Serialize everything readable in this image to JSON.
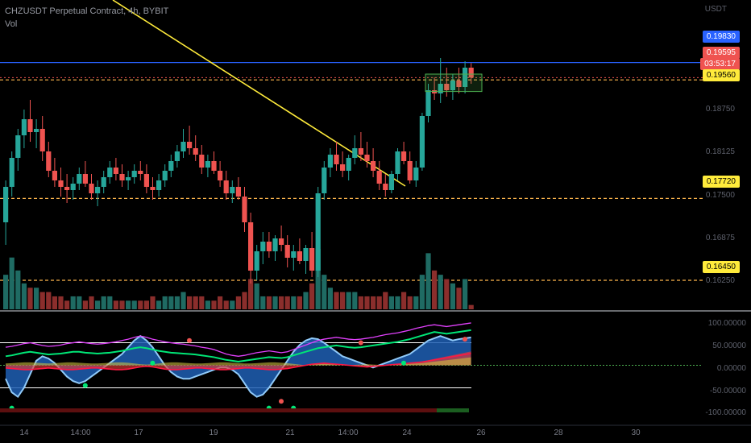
{
  "header": {
    "title": "CHZUSDT Perpetual Contract, 4h, BYBIT",
    "volume_label": "Vol"
  },
  "price_axis": {
    "currency_label": "USDT",
    "ticks": [
      "0.18750",
      "0.18125",
      "0.17500",
      "0.16875",
      "0.16250"
    ]
  },
  "price_tags": {
    "upper_line": "0.19830",
    "last_price": "0.19595",
    "countdown": "03:53:17",
    "box_level": "0.19560",
    "mid_level": "0.17720",
    "low_level": "0.16450"
  },
  "oscillator_axis": {
    "ticks": [
      "100.00000",
      "50.00000",
      "0.00000",
      "-50.00000",
      "-100.00000"
    ]
  },
  "time_axis": {
    "ticks": [
      "14",
      "14:00",
      "17",
      "19",
      "21",
      "14:00",
      "24",
      "26",
      "28",
      "30"
    ]
  },
  "colors": {
    "background": "#000000",
    "bull": "#26a69a",
    "bear": "#ef5350",
    "blue_line": "#2962ff",
    "trendline": "#ffeb3b",
    "dashed_level": "#ffb74d",
    "tag_yellow": "#ffeb3b",
    "tag_blue": "#2962ff",
    "tag_red": "#ef5350"
  },
  "chart_data": {
    "type": "candlestick",
    "symbol": "CHZUSDT",
    "interval": "4h",
    "ylim": [
      0.16,
      0.203
    ],
    "ohlc": [
      [
        0.1735,
        0.18,
        0.17,
        0.179
      ],
      [
        0.179,
        0.1845,
        0.1775,
        0.1835
      ],
      [
        0.1835,
        0.188,
        0.1815,
        0.187
      ],
      [
        0.187,
        0.191,
        0.185,
        0.1895
      ],
      [
        0.1895,
        0.1925,
        0.186,
        0.1875
      ],
      [
        0.1875,
        0.1895,
        0.185,
        0.188
      ],
      [
        0.188,
        0.19,
        0.183,
        0.1845
      ],
      [
        0.1845,
        0.186,
        0.1805,
        0.1815
      ],
      [
        0.1815,
        0.1835,
        0.179,
        0.18
      ],
      [
        0.18,
        0.182,
        0.1775,
        0.179
      ],
      [
        0.179,
        0.181,
        0.1765,
        0.1785
      ],
      [
        0.1785,
        0.1805,
        0.177,
        0.1795
      ],
      [
        0.1795,
        0.182,
        0.1785,
        0.181
      ],
      [
        0.181,
        0.183,
        0.179,
        0.1795
      ],
      [
        0.1795,
        0.181,
        0.177,
        0.178
      ],
      [
        0.178,
        0.18,
        0.176,
        0.179
      ],
      [
        0.179,
        0.1815,
        0.178,
        0.1805
      ],
      [
        0.1805,
        0.183,
        0.1795,
        0.182
      ],
      [
        0.182,
        0.1835,
        0.18,
        0.181
      ],
      [
        0.181,
        0.1825,
        0.179,
        0.18
      ],
      [
        0.18,
        0.1815,
        0.1785,
        0.1805
      ],
      [
        0.1805,
        0.1825,
        0.1795,
        0.1815
      ],
      [
        0.1815,
        0.183,
        0.18,
        0.181
      ],
      [
        0.181,
        0.1825,
        0.178,
        0.179
      ],
      [
        0.179,
        0.1805,
        0.177,
        0.1785
      ],
      [
        0.1785,
        0.181,
        0.1775,
        0.18
      ],
      [
        0.18,
        0.1825,
        0.179,
        0.1815
      ],
      [
        0.1815,
        0.184,
        0.1805,
        0.183
      ],
      [
        0.183,
        0.1855,
        0.182,
        0.1845
      ],
      [
        0.1845,
        0.188,
        0.1835,
        0.186
      ],
      [
        0.186,
        0.1885,
        0.184,
        0.185
      ],
      [
        0.185,
        0.187,
        0.183,
        0.184
      ],
      [
        0.184,
        0.1855,
        0.181,
        0.182
      ],
      [
        0.182,
        0.184,
        0.1805,
        0.183
      ],
      [
        0.183,
        0.1845,
        0.181,
        0.1815
      ],
      [
        0.1815,
        0.183,
        0.179,
        0.18
      ],
      [
        0.18,
        0.1815,
        0.177,
        0.178
      ],
      [
        0.178,
        0.18,
        0.1765,
        0.179
      ],
      [
        0.179,
        0.1805,
        0.177,
        0.1775
      ],
      [
        0.1775,
        0.179,
        0.172,
        0.1735
      ],
      [
        0.1735,
        0.175,
        0.164,
        0.166
      ],
      [
        0.166,
        0.17,
        0.1645,
        0.169
      ],
      [
        0.169,
        0.172,
        0.167,
        0.1705
      ],
      [
        0.1705,
        0.172,
        0.168,
        0.169
      ],
      [
        0.169,
        0.1715,
        0.1675,
        0.171
      ],
      [
        0.171,
        0.173,
        0.169,
        0.17
      ],
      [
        0.17,
        0.1715,
        0.1665,
        0.168
      ],
      [
        0.168,
        0.17,
        0.166,
        0.169
      ],
      [
        0.169,
        0.171,
        0.167,
        0.1675
      ],
      [
        0.1675,
        0.17,
        0.1655,
        0.1695
      ],
      [
        0.1695,
        0.172,
        0.165,
        0.166
      ],
      [
        0.166,
        0.179,
        0.165,
        0.178
      ],
      [
        0.178,
        0.183,
        0.177,
        0.182
      ],
      [
        0.182,
        0.185,
        0.1805,
        0.184
      ],
      [
        0.184,
        0.186,
        0.1815,
        0.1825
      ],
      [
        0.1825,
        0.1845,
        0.1805,
        0.1815
      ],
      [
        0.1815,
        0.184,
        0.18,
        0.1835
      ],
      [
        0.1835,
        0.187,
        0.1825,
        0.185
      ],
      [
        0.185,
        0.1875,
        0.183,
        0.184
      ],
      [
        0.184,
        0.186,
        0.182,
        0.183
      ],
      [
        0.183,
        0.185,
        0.1805,
        0.1815
      ],
      [
        0.1815,
        0.183,
        0.1785,
        0.1795
      ],
      [
        0.1795,
        0.181,
        0.1775,
        0.1785
      ],
      [
        0.1785,
        0.1815,
        0.178,
        0.181
      ],
      [
        0.181,
        0.185,
        0.18,
        0.1845
      ],
      [
        0.1845,
        0.186,
        0.1825,
        0.183
      ],
      [
        0.183,
        0.1845,
        0.1795,
        0.18
      ],
      [
        0.18,
        0.183,
        0.179,
        0.182
      ],
      [
        0.182,
        0.1905,
        0.1815,
        0.19
      ],
      [
        0.19,
        0.195,
        0.189,
        0.194
      ],
      [
        0.194,
        0.196,
        0.1925,
        0.1935
      ],
      [
        0.1935,
        0.199,
        0.192,
        0.195
      ],
      [
        0.195,
        0.1975,
        0.193,
        0.194
      ],
      [
        0.194,
        0.1965,
        0.1925,
        0.1955
      ],
      [
        0.1955,
        0.1975,
        0.1935,
        0.1945
      ],
      [
        0.1945,
        0.1985,
        0.1935,
        0.1975
      ],
      [
        0.1975,
        0.1982,
        0.195,
        0.19595
      ]
    ],
    "volume": [
      8,
      12,
      9,
      6,
      5,
      5,
      4,
      4,
      3,
      3,
      2,
      3,
      3,
      2,
      3,
      2,
      3,
      3,
      2,
      2,
      2,
      2,
      2,
      2,
      3,
      2,
      3,
      3,
      3,
      4,
      3,
      3,
      3,
      2,
      2,
      3,
      2,
      2,
      3,
      4,
      7,
      6,
      3,
      3,
      3,
      3,
      3,
      3,
      3,
      4,
      6,
      14,
      8,
      5,
      4,
      4,
      4,
      4,
      3,
      3,
      3,
      3,
      4,
      3,
      3,
      4,
      3,
      3,
      8,
      13,
      9,
      8,
      7,
      6,
      5,
      7,
      1
    ],
    "levels": [
      0.1983,
      0.1956,
      0.1772,
      0.1645
    ],
    "last_price": 0.19595
  },
  "oscillator_data": {
    "ylim": [
      -110,
      110
    ],
    "levels": [
      100,
      50,
      0,
      -50,
      -100
    ],
    "magenta": [
      40,
      42,
      45,
      48,
      50,
      47,
      44,
      42,
      43,
      45,
      48,
      50,
      52,
      50,
      48,
      47,
      48,
      50,
      52,
      55,
      58,
      62,
      65,
      62,
      58,
      55,
      52,
      50,
      48,
      47,
      45,
      43,
      40,
      38,
      35,
      30,
      25,
      22,
      20,
      22,
      25,
      28,
      30,
      32,
      30,
      28,
      30,
      35,
      40,
      45,
      50,
      55,
      58,
      60,
      62,
      60,
      58,
      57,
      58,
      60,
      62,
      65,
      68,
      70,
      72,
      75,
      78,
      82,
      85,
      88,
      90,
      88,
      86,
      88,
      90,
      92,
      94
    ],
    "green": [
      20,
      22,
      25,
      28,
      30,
      28,
      26,
      24,
      25,
      26,
      28,
      30,
      30,
      28,
      27,
      26,
      27,
      28,
      30,
      32,
      35,
      38,
      40,
      38,
      35,
      32,
      30,
      28,
      27,
      26,
      25,
      24,
      22,
      20,
      18,
      15,
      12,
      10,
      8,
      10,
      12,
      14,
      16,
      18,
      17,
      16,
      18,
      22,
      26,
      30,
      34,
      38,
      40,
      42,
      44,
      42,
      40,
      39,
      40,
      42,
      44,
      46,
      48,
      50,
      52,
      55,
      58,
      62,
      66,
      70,
      74,
      72,
      70,
      72,
      74,
      76,
      78
    ],
    "red": [
      -5,
      -6,
      -7,
      -8,
      -8,
      -7,
      -6,
      -5,
      -6,
      -7,
      -8,
      -8,
      -7,
      -6,
      -5,
      -5,
      -6,
      -7,
      -8,
      -8,
      -7,
      -5,
      -3,
      -2,
      -3,
      -5,
      -7,
      -8,
      -8,
      -7,
      -6,
      -5,
      -5,
      -6,
      -7,
      -8,
      -8,
      -7,
      -6,
      -5,
      -5,
      -6,
      -7,
      -8,
      -8,
      -7,
      -6,
      -4,
      -2,
      0,
      2,
      3,
      4,
      3,
      2,
      1,
      0,
      -1,
      -2,
      -3,
      -2,
      -1,
      0,
      1,
      2,
      3,
      4,
      5,
      6,
      8,
      10,
      12,
      14,
      16,
      18,
      20,
      22
    ],
    "wave": [
      -30,
      -60,
      -70,
      -50,
      -20,
      10,
      20,
      15,
      5,
      -10,
      -25,
      -35,
      -40,
      -35,
      -25,
      -15,
      -5,
      5,
      15,
      25,
      40,
      55,
      65,
      55,
      40,
      20,
      0,
      -15,
      -25,
      -30,
      -30,
      -25,
      -20,
      -15,
      -10,
      -5,
      -5,
      -10,
      -20,
      -40,
      -60,
      -70,
      -65,
      -50,
      -30,
      -10,
      10,
      30,
      45,
      55,
      60,
      58,
      50,
      40,
      30,
      20,
      15,
      10,
      5,
      0,
      -5,
      0,
      5,
      10,
      15,
      20,
      25,
      35,
      45,
      55,
      60,
      65,
      60,
      55,
      58,
      60,
      62
    ]
  }
}
